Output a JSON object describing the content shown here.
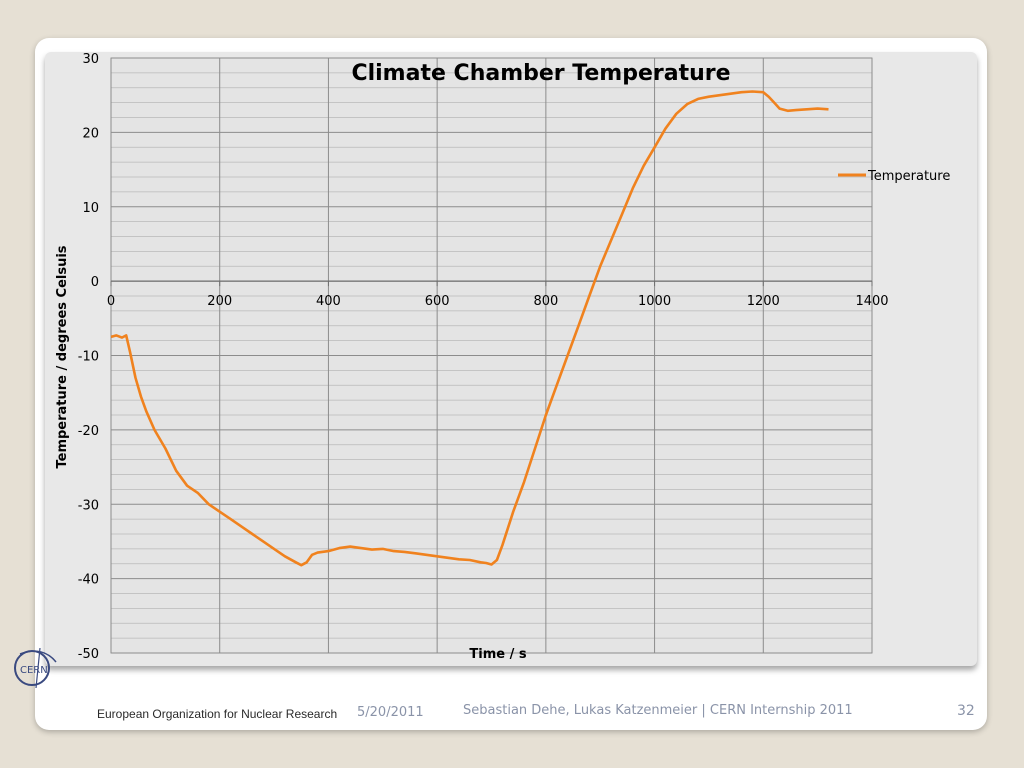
{
  "footer": {
    "organization": "European Organization for Nuclear Research",
    "date": "5/20/2011",
    "authors": "Sebastian Dehe, Lukas Katzenmeier | CERN Internship 2011",
    "page_number": "32",
    "logo_text": "CERN"
  },
  "chart_data": {
    "type": "line",
    "title": "Climate Chamber Temperature",
    "xlabel": "Time / s",
    "ylabel": "Temperature / degrees Celsuis",
    "xlim": [
      0,
      1400
    ],
    "ylim": [
      -50,
      30
    ],
    "x_ticks": [
      "0",
      "200",
      "400",
      "600",
      "800",
      "1000",
      "1200",
      "1400"
    ],
    "y_ticks": [
      "30",
      "20",
      "10",
      "0",
      "-10",
      "-20",
      "-30",
      "-40",
      "-50"
    ],
    "grid": true,
    "legend_position": "right",
    "series": [
      {
        "name": "Temperature",
        "color": "#f0821e",
        "points": [
          [
            0,
            -7.5
          ],
          [
            10,
            -7.3
          ],
          [
            20,
            -7.6
          ],
          [
            28,
            -7.3
          ],
          [
            35,
            -9.5
          ],
          [
            45,
            -13
          ],
          [
            55,
            -15.5
          ],
          [
            65,
            -17.5
          ],
          [
            80,
            -20
          ],
          [
            100,
            -22.5
          ],
          [
            120,
            -25.5
          ],
          [
            140,
            -27.5
          ],
          [
            160,
            -28.5
          ],
          [
            180,
            -30
          ],
          [
            200,
            -31
          ],
          [
            220,
            -32
          ],
          [
            240,
            -33
          ],
          [
            260,
            -34
          ],
          [
            280,
            -35
          ],
          [
            300,
            -36
          ],
          [
            320,
            -37
          ],
          [
            340,
            -37.8
          ],
          [
            350,
            -38.2
          ],
          [
            360,
            -37.8
          ],
          [
            370,
            -36.8
          ],
          [
            380,
            -36.5
          ],
          [
            400,
            -36.3
          ],
          [
            420,
            -35.9
          ],
          [
            440,
            -35.7
          ],
          [
            460,
            -35.9
          ],
          [
            480,
            -36.1
          ],
          [
            500,
            -36.0
          ],
          [
            520,
            -36.3
          ],
          [
            540,
            -36.4
          ],
          [
            560,
            -36.6
          ],
          [
            580,
            -36.8
          ],
          [
            600,
            -37
          ],
          [
            620,
            -37.2
          ],
          [
            640,
            -37.4
          ],
          [
            660,
            -37.5
          ],
          [
            680,
            -37.8
          ],
          [
            690,
            -37.9
          ],
          [
            700,
            -38.1
          ],
          [
            710,
            -37.5
          ],
          [
            720,
            -35.5
          ],
          [
            740,
            -31
          ],
          [
            760,
            -27
          ],
          [
            780,
            -22.5
          ],
          [
            800,
            -18
          ],
          [
            820,
            -14
          ],
          [
            840,
            -10
          ],
          [
            860,
            -6
          ],
          [
            880,
            -2
          ],
          [
            900,
            2
          ],
          [
            920,
            5.5
          ],
          [
            940,
            9
          ],
          [
            960,
            12.5
          ],
          [
            980,
            15.5
          ],
          [
            1000,
            18
          ],
          [
            1020,
            20.5
          ],
          [
            1040,
            22.5
          ],
          [
            1060,
            23.8
          ],
          [
            1080,
            24.5
          ],
          [
            1100,
            24.8
          ],
          [
            1120,
            25.0
          ],
          [
            1140,
            25.2
          ],
          [
            1160,
            25.4
          ],
          [
            1180,
            25.5
          ],
          [
            1200,
            25.4
          ],
          [
            1210,
            24.8
          ],
          [
            1220,
            24
          ],
          [
            1230,
            23.2
          ],
          [
            1245,
            22.9
          ],
          [
            1260,
            23.0
          ],
          [
            1280,
            23.1
          ],
          [
            1300,
            23.2
          ],
          [
            1320,
            23.1
          ]
        ]
      }
    ]
  }
}
